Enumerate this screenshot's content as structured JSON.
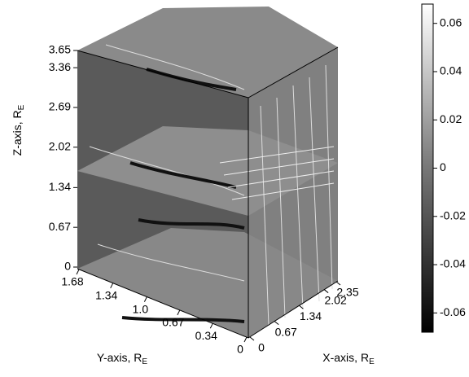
{
  "chart_data": {
    "type": "slices3d",
    "z_axis": {
      "label": "Z-axis, R",
      "sub": "E",
      "lim": [
        0,
        3.65
      ],
      "ticks": [
        0,
        0.67,
        1.34,
        2.02,
        2.69,
        3.36,
        3.65
      ]
    },
    "y_axis": {
      "label": "Y-axis, R",
      "sub": "E",
      "lim": [
        0,
        1.68
      ],
      "ticks": [
        1.68,
        1.34,
        {
          "value": 1,
          "label": "1.0"
        },
        0.67,
        0.34,
        0
      ]
    },
    "x_axis": {
      "label": "X-axis, R",
      "sub": "E",
      "lim": [
        0,
        2.35
      ],
      "ticks": [
        0,
        0.67,
        1.34,
        2.02,
        2.35
      ]
    },
    "colorbar": {
      "lim": [
        -0.068,
        0.068
      ],
      "ticks": [
        0.06,
        0.04,
        0.02,
        0,
        -0.02,
        -0.04,
        -0.06
      ]
    }
  }
}
